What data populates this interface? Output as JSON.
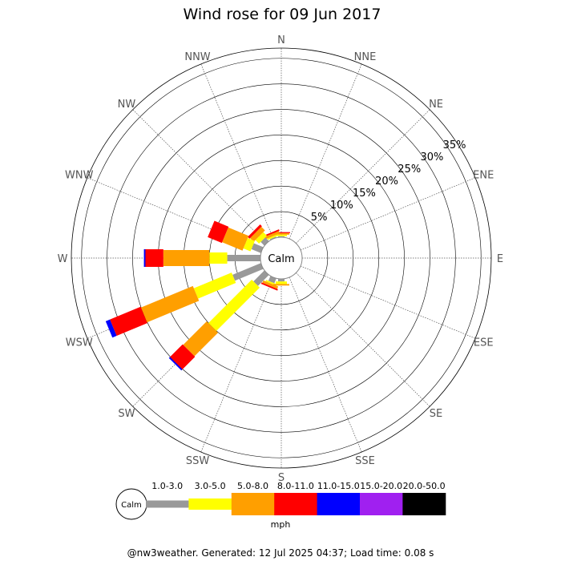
{
  "chart_data": {
    "type": "wind-rose",
    "title": "Wind rose for 09 Jun 2017",
    "center_label": "Calm",
    "directions": [
      "N",
      "NNE",
      "NE",
      "ENE",
      "E",
      "ESE",
      "SE",
      "SSE",
      "S",
      "SSW",
      "SW",
      "WSW",
      "W",
      "WNW",
      "NW",
      "NNW"
    ],
    "ring_labels": [
      "5%",
      "10%",
      "15%",
      "20%",
      "25%",
      "30%",
      "35%"
    ],
    "rmax": 37,
    "speed_bins": [
      {
        "label": "1.0-3.0",
        "color": "#999999"
      },
      {
        "label": "3.0-5.0",
        "color": "#ffff00"
      },
      {
        "label": "5.0-8.0",
        "color": "#ff9f00"
      },
      {
        "label": "8.0-11.0",
        "color": "#ff0000"
      },
      {
        "label": "11.0-15.0",
        "color": "#0000ff"
      },
      {
        "label": "15.0-20.0",
        "color": "#a020f0"
      },
      {
        "label": "20.0-50.0",
        "color": "#000000"
      }
    ],
    "units": "mph",
    "series": [
      {
        "direction": "N",
        "values": [
          0.2,
          0.3,
          0.3,
          0.2,
          0,
          0,
          0
        ]
      },
      {
        "direction": "NNW",
        "values": [
          0.2,
          0.3,
          0.5,
          0.3,
          0,
          0,
          0
        ]
      },
      {
        "direction": "NW",
        "values": [
          1.0,
          1.0,
          1.0,
          0.5,
          0,
          0,
          0
        ]
      },
      {
        "direction": "WNW",
        "values": [
          2.0,
          1.5,
          4.3,
          3.0,
          0,
          0,
          0
        ]
      },
      {
        "direction": "W",
        "values": [
          6.5,
          3.5,
          9.0,
          3.5,
          0.3,
          0,
          0
        ]
      },
      {
        "direction": "WSW",
        "values": [
          6.0,
          8.0,
          11.0,
          6.5,
          0.9,
          0,
          0
        ]
      },
      {
        "direction": "SW",
        "values": [
          3.0,
          12.0,
          6.5,
          3.5,
          0.3,
          0,
          0
        ]
      },
      {
        "direction": "SSW",
        "values": [
          1.0,
          0.3,
          0.5,
          0.3,
          0,
          0,
          0
        ]
      },
      {
        "direction": "S",
        "values": [
          0.5,
          0.5,
          0.3,
          0,
          0,
          0,
          0
        ]
      }
    ]
  },
  "footer": "@nw3weather. Generated: 12 Jul 2025 04:37; Load time: 0.08 s"
}
